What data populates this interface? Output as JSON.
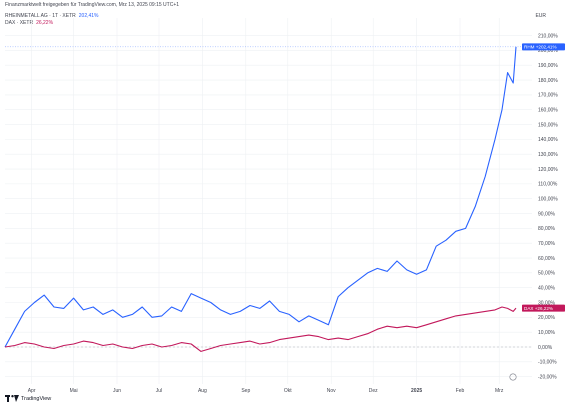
{
  "header": {
    "source_line": "Finanzmarktwelt freigegeben für TradingView.com, Mrz 13, 2025 09:15 UTC+1",
    "series1_ticker": "RHEINMETALL AG · 1T · XETR",
    "series1_value": "202,41%",
    "series2_ticker": "DAX · XETR",
    "series2_value": "26,22%",
    "currency": "EUR"
  },
  "footer": {
    "brand": "TradingView",
    "logo_icon": "tradingview-logo-icon"
  },
  "colors": {
    "series1": "#2962ff",
    "series2": "#c2185b",
    "grid": "#eef0f3",
    "zero_line": "#c7c9cf"
  },
  "chart_data": {
    "type": "line",
    "title": "",
    "xlabel": "",
    "ylabel": "",
    "ylim": [
      -20,
      212
    ],
    "yticks": [
      -20,
      -10,
      0,
      10,
      20,
      30,
      40,
      50,
      60,
      70,
      80,
      90,
      100,
      110,
      120,
      130,
      140,
      150,
      160,
      170,
      180,
      190,
      200,
      210
    ],
    "ytick_labels": [
      "-20,00%",
      "-10,00%",
      "0,00%",
      "10,00%",
      "20,00%",
      "30,00%",
      "40,00%",
      "50,00%",
      "60,00%",
      "70,00%",
      "80,00%",
      "90,00%",
      "100,00%",
      "110,00%",
      "120,00%",
      "130,00%",
      "140,00%",
      "150,00%",
      "160,00%",
      "170,00%",
      "180,00%",
      "190,00%",
      "200,00%",
      "210,00%"
    ],
    "xlim": [
      "2024-03-13",
      "2025-03-13"
    ],
    "xticks": [
      "2024-04-01",
      "2024-05-01",
      "2024-06-01",
      "2024-07-01",
      "2024-08-01",
      "2024-09-01",
      "2024-10-01",
      "2024-11-01",
      "2024-12-01",
      "2025-01-01",
      "2025-02-01",
      "2025-03-01"
    ],
    "xtick_labels": [
      "Apr",
      "Mai",
      "Jun",
      "Jul",
      "Aug",
      "Sep",
      "Okt",
      "Nov",
      "Dez",
      "2025",
      "Feb",
      "Mrz"
    ],
    "grid": true,
    "series": [
      {
        "name": "RHEINMETALL AG",
        "label_tag": "RHM",
        "last_label": "+202,41%",
        "x": [
          "2024-03-13",
          "2024-03-20",
          "2024-03-27",
          "2024-04-03",
          "2024-04-10",
          "2024-04-17",
          "2024-04-24",
          "2024-05-01",
          "2024-05-08",
          "2024-05-15",
          "2024-05-22",
          "2024-05-29",
          "2024-06-05",
          "2024-06-12",
          "2024-06-19",
          "2024-06-26",
          "2024-07-03",
          "2024-07-10",
          "2024-07-17",
          "2024-07-24",
          "2024-07-31",
          "2024-08-07",
          "2024-08-14",
          "2024-08-21",
          "2024-08-28",
          "2024-09-04",
          "2024-09-11",
          "2024-09-18",
          "2024-09-25",
          "2024-10-02",
          "2024-10-09",
          "2024-10-16",
          "2024-10-23",
          "2024-10-30",
          "2024-11-06",
          "2024-11-13",
          "2024-11-20",
          "2024-11-27",
          "2024-12-04",
          "2024-12-11",
          "2024-12-18",
          "2024-12-25",
          "2025-01-01",
          "2025-01-08",
          "2025-01-15",
          "2025-01-22",
          "2025-01-29",
          "2025-02-05",
          "2025-02-12",
          "2025-02-19",
          "2025-02-26",
          "2025-03-03",
          "2025-03-07",
          "2025-03-11",
          "2025-03-13"
        ],
        "y": [
          0,
          12,
          24,
          30,
          35,
          27,
          26,
          33,
          25,
          27,
          22,
          25,
          20,
          22,
          27,
          20,
          21,
          27,
          24,
          36,
          33,
          30,
          25,
          22,
          24,
          28,
          26,
          31,
          24,
          22,
          17,
          21,
          18,
          15,
          34,
          40,
          45,
          50,
          53,
          51,
          58,
          52,
          49,
          52,
          68,
          72,
          78,
          80,
          95,
          115,
          140,
          160,
          185,
          178,
          202.41
        ]
      },
      {
        "name": "DAX",
        "label_tag": "DAX",
        "last_label": "+26,22%",
        "x": [
          "2024-03-13",
          "2024-03-20",
          "2024-03-27",
          "2024-04-03",
          "2024-04-10",
          "2024-04-17",
          "2024-04-24",
          "2024-05-01",
          "2024-05-08",
          "2024-05-15",
          "2024-05-22",
          "2024-05-29",
          "2024-06-05",
          "2024-06-12",
          "2024-06-19",
          "2024-06-26",
          "2024-07-03",
          "2024-07-10",
          "2024-07-17",
          "2024-07-24",
          "2024-07-31",
          "2024-08-07",
          "2024-08-14",
          "2024-08-21",
          "2024-08-28",
          "2024-09-04",
          "2024-09-11",
          "2024-09-18",
          "2024-09-25",
          "2024-10-02",
          "2024-10-09",
          "2024-10-16",
          "2024-10-23",
          "2024-10-30",
          "2024-11-06",
          "2024-11-13",
          "2024-11-20",
          "2024-11-27",
          "2024-12-04",
          "2024-12-11",
          "2024-12-18",
          "2024-12-25",
          "2025-01-01",
          "2025-01-08",
          "2025-01-15",
          "2025-01-22",
          "2025-01-29",
          "2025-02-05",
          "2025-02-12",
          "2025-02-19",
          "2025-02-26",
          "2025-03-03",
          "2025-03-07",
          "2025-03-11",
          "2025-03-13"
        ],
        "y": [
          0,
          1,
          3,
          2,
          0,
          -1,
          1,
          2,
          4,
          3,
          1,
          2,
          0,
          -1,
          1,
          2,
          0,
          1,
          3,
          2,
          -3,
          -1,
          1,
          2,
          3,
          4,
          2,
          3,
          5,
          6,
          7,
          8,
          7,
          5,
          6,
          5,
          7,
          9,
          12,
          14,
          13,
          14,
          13,
          15,
          17,
          19,
          21,
          22,
          23,
          24,
          25,
          27,
          26,
          24,
          26.22
        ]
      }
    ]
  }
}
